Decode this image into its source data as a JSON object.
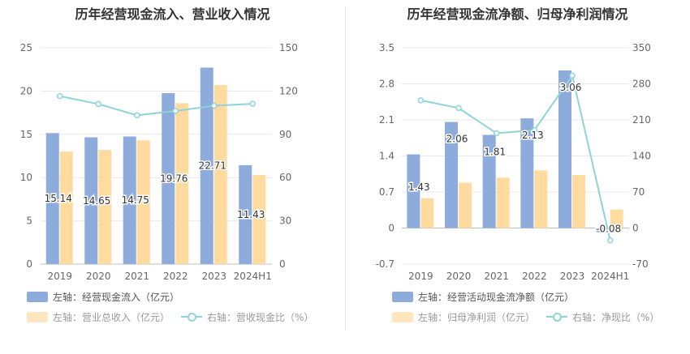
{
  "chart_data": [
    {
      "type": "bar",
      "title": "历年经营现金流入、营业收入情况",
      "categories": [
        "2019",
        "2020",
        "2021",
        "2022",
        "2023",
        "2024H1"
      ],
      "y_left": {
        "ylim": [
          0,
          25
        ],
        "ticks": [
          "0",
          "5",
          "10",
          "15",
          "20",
          "25"
        ]
      },
      "y_right": {
        "ylim": [
          0,
          150
        ],
        "ticks": [
          "0",
          "30",
          "60",
          "90",
          "120",
          "150"
        ]
      },
      "series": [
        {
          "name": "左轴：经营现金流入（亿元）",
          "axis": "left",
          "kind": "bar",
          "color": "#8dacdc",
          "values": [
            15.14,
            14.65,
            14.75,
            19.76,
            22.71,
            11.43
          ],
          "labels": [
            "15.14",
            "14.65",
            "14.75",
            "19.76",
            "22.71",
            "11.43"
          ]
        },
        {
          "name": "左轴：营业总收入（亿元）",
          "axis": "left",
          "kind": "bar",
          "color": "#ffdba0",
          "values": [
            13.0,
            13.2,
            14.3,
            18.6,
            20.7,
            10.3
          ]
        },
        {
          "name": "右轴：营收现金比（%）",
          "axis": "right",
          "kind": "line",
          "color": "#8fd3da",
          "values": [
            116.5,
            111.0,
            103.2,
            106.2,
            109.8,
            111.2
          ]
        }
      ]
    },
    {
      "type": "bar",
      "title": "历年经营现金流净额、归母净利润情况",
      "categories": [
        "2019",
        "2020",
        "2021",
        "2022",
        "2023",
        "2024H1"
      ],
      "y_left": {
        "ylim": [
          -0.7,
          3.5
        ],
        "ticks": [
          "-0.7",
          "0",
          "0.7",
          "1.4",
          "2.1",
          "2.8",
          "3.5"
        ]
      },
      "y_right": {
        "ylim": [
          -70,
          350
        ],
        "ticks": [
          "-70",
          "0",
          "70",
          "140",
          "210",
          "280",
          "350"
        ]
      },
      "series": [
        {
          "name": "左轴：经营活动现金流净额（亿元）",
          "axis": "left",
          "kind": "bar",
          "color": "#8dacdc",
          "values": [
            1.43,
            2.06,
            1.81,
            2.13,
            3.06,
            -0.08
          ],
          "labels": [
            "1.43",
            "2.06",
            "1.81",
            "2.13",
            "3.06",
            "-0.08"
          ]
        },
        {
          "name": "左轴：归母净利润（亿元）",
          "axis": "left",
          "kind": "bar",
          "color": "#ffdba0",
          "values": [
            0.58,
            0.88,
            0.98,
            1.12,
            1.03,
            0.36
          ]
        },
        {
          "name": "右轴：净现比（%）",
          "axis": "right",
          "kind": "line",
          "color": "#8fd3da",
          "values": [
            248,
            233,
            184,
            190,
            296,
            -24
          ]
        }
      ]
    }
  ]
}
